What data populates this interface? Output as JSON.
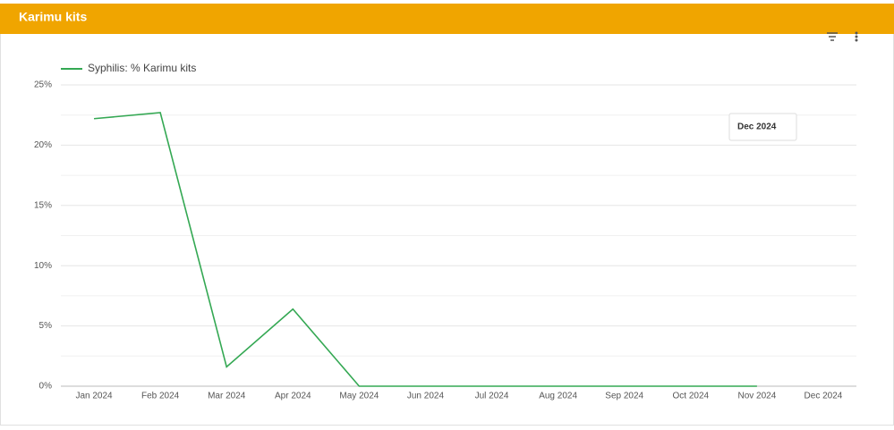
{
  "header": {
    "title": "Karimu kits"
  },
  "tooltip": "Dec 2024",
  "chart_data": {
    "type": "line",
    "categories": [
      "Jan 2024",
      "Feb 2024",
      "Mar 2024",
      "Apr 2024",
      "May 2024",
      "Jun 2024",
      "Jul 2024",
      "Aug 2024",
      "Sep 2024",
      "Oct 2024",
      "Nov 2024",
      "Dec 2024"
    ],
    "series": [
      {
        "name": "Syphilis: % Karimu kits",
        "color": "#34a853",
        "values": [
          22.2,
          22.7,
          1.6,
          6.4,
          0,
          0,
          0,
          0,
          0,
          0,
          0,
          null
        ]
      }
    ],
    "ylim": [
      0,
      25
    ],
    "yticks": [
      {
        "value": 0,
        "label": "0%"
      },
      {
        "value": 5,
        "label": "5%"
      },
      {
        "value": 10,
        "label": "10%"
      },
      {
        "value": 15,
        "label": "15%"
      },
      {
        "value": 20,
        "label": "20%"
      },
      {
        "value": 25,
        "label": "25%"
      }
    ],
    "minor_gridlines": [
      2.5,
      7.5,
      12.5,
      17.5,
      22.5
    ],
    "grid": true,
    "legend": "top-left"
  }
}
